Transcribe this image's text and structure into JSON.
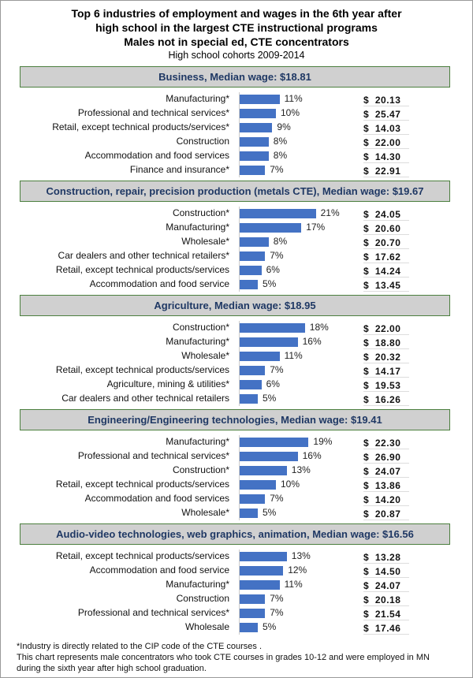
{
  "chart_data": {
    "type": "bar",
    "title": [
      "Top 6 industries of employment and wages in the 6th year after",
      "high school in the largest CTE instructional programs",
      "Males not in special ed, CTE concentrators"
    ],
    "subtitle": "High school cohorts 2009-2014",
    "bar_color": "#4472c4",
    "header_bg": "#d0d0d0",
    "header_border": "#4b7f3e",
    "groups": [
      {
        "header": "Business, Median wage: $18.81",
        "rows": [
          {
            "label": "Manufacturing*",
            "value": 11,
            "pct": "11%",
            "wage": "$  20.13"
          },
          {
            "label": "Professional and technical services*",
            "value": 10,
            "pct": "10%",
            "wage": "$  25.47"
          },
          {
            "label": "Retail, except technical products/services*",
            "value": 9,
            "pct": "9%",
            "wage": "$  14.03"
          },
          {
            "label": "Construction",
            "value": 8,
            "pct": "8%",
            "wage": "$  22.00"
          },
          {
            "label": "Accommodation and food services",
            "value": 8,
            "pct": "8%",
            "wage": "$  14.30"
          },
          {
            "label": "Finance and insurance*",
            "value": 7,
            "pct": "7%",
            "wage": "$  22.91"
          }
        ]
      },
      {
        "header": "Construction, repair, precision production (metals CTE), Median wage: $19.67",
        "rows": [
          {
            "label": "Construction*",
            "value": 21,
            "pct": "21%",
            "wage": "$  24.05"
          },
          {
            "label": "Manufacturing*",
            "value": 17,
            "pct": "17%",
            "wage": "$  20.60"
          },
          {
            "label": "Wholesale*",
            "value": 8,
            "pct": "8%",
            "wage": "$  20.70"
          },
          {
            "label": "Car dealers and other technical retailers*",
            "value": 7,
            "pct": "7%",
            "wage": "$  17.62"
          },
          {
            "label": "Retail, except technical products/services",
            "value": 6,
            "pct": "6%",
            "wage": "$  14.24"
          },
          {
            "label": "Accommodation and food service",
            "value": 5,
            "pct": "5%",
            "wage": "$  13.45"
          }
        ]
      },
      {
        "header": "Agriculture, Median wage: $18.95",
        "rows": [
          {
            "label": "Construction*",
            "value": 18,
            "pct": "18%",
            "wage": "$  22.00"
          },
          {
            "label": "Manufacturing*",
            "value": 16,
            "pct": "16%",
            "wage": "$  18.80"
          },
          {
            "label": "Wholesale*",
            "value": 11,
            "pct": "11%",
            "wage": "$  20.32"
          },
          {
            "label": "Retail, except technical products/services",
            "value": 7,
            "pct": "7%",
            "wage": "$  14.17"
          },
          {
            "label": "Agriculture, mining & utilities*",
            "value": 6,
            "pct": "6%",
            "wage": "$  19.53"
          },
          {
            "label": "Car dealers and other technical retailers",
            "value": 5,
            "pct": "5%",
            "wage": "$  16.26"
          }
        ]
      },
      {
        "header": "Engineering/Engineering technologies, Median wage: $19.41",
        "rows": [
          {
            "label": "Manufacturing*",
            "value": 19,
            "pct": "19%",
            "wage": "$  22.30"
          },
          {
            "label": "Professional and technical services*",
            "value": 16,
            "pct": "16%",
            "wage": "$  26.90"
          },
          {
            "label": "Construction*",
            "value": 13,
            "pct": "13%",
            "wage": "$  24.07"
          },
          {
            "label": "Retail, except technical products/services",
            "value": 10,
            "pct": "10%",
            "wage": "$  13.86"
          },
          {
            "label": "Accommodation and food services",
            "value": 7,
            "pct": "7%",
            "wage": "$  14.20"
          },
          {
            "label": "Wholesale*",
            "value": 5,
            "pct": "5%",
            "wage": "$  20.87"
          }
        ]
      },
      {
        "header": "Audio-video technologies, web graphics, animation, Median wage: $16.56",
        "rows": [
          {
            "label": "Retail, except technical products/services",
            "value": 13,
            "pct": "13%",
            "wage": "$  13.28"
          },
          {
            "label": "Accommodation and food service",
            "value": 12,
            "pct": "12%",
            "wage": "$  14.50"
          },
          {
            "label": "Manufacturing*",
            "value": 11,
            "pct": "11%",
            "wage": "$  24.07"
          },
          {
            "label": "Construction",
            "value": 7,
            "pct": "7%",
            "wage": "$  20.18"
          },
          {
            "label": "Professional and technical services*",
            "value": 7,
            "pct": "7%",
            "wage": "$  21.54"
          },
          {
            "label": "Wholesale",
            "value": 5,
            "pct": "5%",
            "wage": "$  17.46"
          }
        ]
      }
    ],
    "footnotes": [
      "*Industry is directly related to the CIP code of the CTE courses .",
      "This chart represents male concentrators who took CTE courses in grades 10-12 and were employed in MN",
      "during the sixth year after high school graduation."
    ]
  }
}
